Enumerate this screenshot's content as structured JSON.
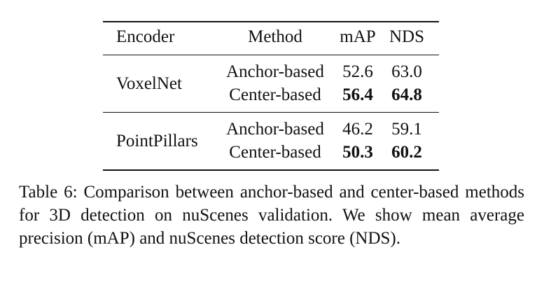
{
  "table": {
    "headers": {
      "encoder": "Encoder",
      "method": "Method",
      "map": "mAP",
      "nds": "NDS"
    },
    "groups": [
      {
        "encoder": "VoxelNet",
        "rows": [
          {
            "method": "Anchor-based",
            "map": "52.6",
            "nds": "63.0",
            "best": false
          },
          {
            "method": "Center-based",
            "map": "56.4",
            "nds": "64.8",
            "best": true
          }
        ]
      },
      {
        "encoder": "PointPillars",
        "rows": [
          {
            "method": "Anchor-based",
            "map": "46.2",
            "nds": "59.1",
            "best": false
          },
          {
            "method": "Center-based",
            "map": "50.3",
            "nds": "60.2",
            "best": true
          }
        ]
      }
    ]
  },
  "caption": "Table 6: Comparison between anchor-based and center-based methods for 3D detection on nuScenes validation. We show mean average precision (mAP) and nuScenes detection score (NDS)."
}
